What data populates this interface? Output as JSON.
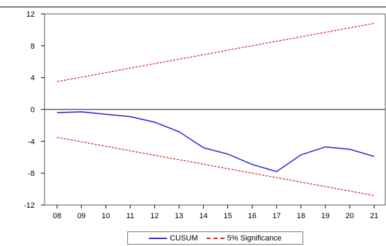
{
  "chart_data": {
    "type": "line",
    "x": [
      "08",
      "09",
      "10",
      "11",
      "12",
      "13",
      "14",
      "15",
      "16",
      "17",
      "18",
      "19",
      "20",
      "21"
    ],
    "xlim": [
      "08",
      "21"
    ],
    "ylim": [
      -12,
      12
    ],
    "yticks": [
      12,
      8,
      4,
      0,
      -4,
      -8,
      -12
    ],
    "grid": false,
    "legend_position": "bottom-center",
    "series": [
      {
        "name": "CUSUM",
        "color": "#2b2bdc",
        "style": "solid",
        "values": [
          -0.4,
          -0.3,
          -0.6,
          -0.9,
          -1.6,
          -2.8,
          -4.8,
          -5.6,
          -6.9,
          -7.8,
          -5.7,
          -4.7,
          -5.0,
          -5.9
        ]
      },
      {
        "name": "5% Significance",
        "color": "#e02020",
        "style": "dashed",
        "values": [
          3.5,
          4.06,
          4.62,
          5.19,
          5.75,
          6.31,
          6.87,
          7.44,
          8.0,
          8.56,
          9.12,
          9.69,
          10.25,
          10.81
        ]
      },
      {
        "name": "5% Significance",
        "color": "#e02020",
        "style": "dashed",
        "values": [
          -3.5,
          -4.06,
          -4.62,
          -5.19,
          -5.75,
          -6.31,
          -6.87,
          -7.44,
          -8.0,
          -8.56,
          -9.12,
          -9.69,
          -10.25,
          -10.81
        ]
      }
    ],
    "legend": [
      "CUSUM",
      "5% Significance"
    ]
  }
}
